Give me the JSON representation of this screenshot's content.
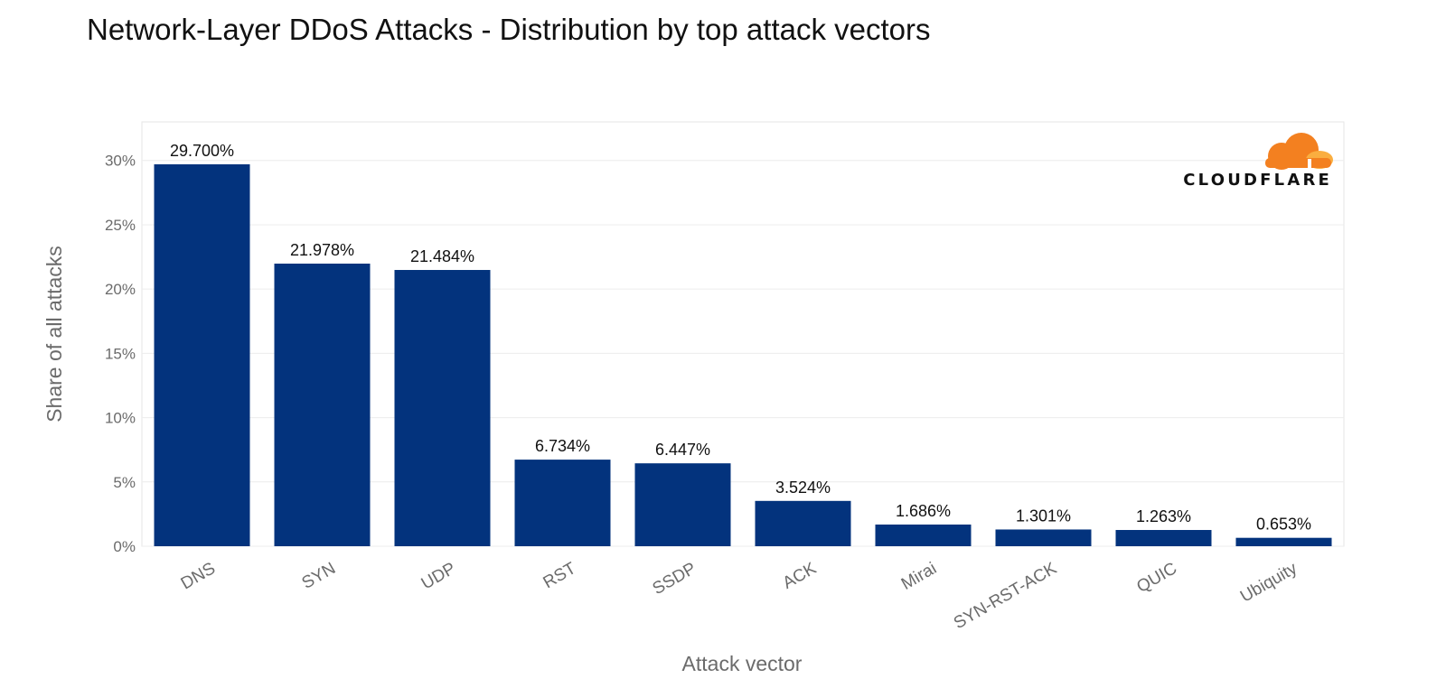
{
  "title": "Network-Layer DDoS Attacks - Distribution by top attack vectors",
  "logo": {
    "text": "CLOUDFLARE",
    "cloud_color": "#F38020",
    "cloud_highlight": "#FAAE40"
  },
  "colors": {
    "bar": "#03337D",
    "grid": "#ececec",
    "plot_border": "#e6e6e6"
  },
  "chart_data": {
    "type": "bar",
    "title": "Network-Layer DDoS Attacks - Distribution by top attack vectors",
    "xlabel": "Attack vector",
    "ylabel": "Share of all attacks",
    "categories": [
      "DNS",
      "SYN",
      "UDP",
      "RST",
      "SSDP",
      "ACK",
      "Mirai",
      "SYN-RST-ACK",
      "QUIC",
      "Ubiquity"
    ],
    "values": [
      29.7,
      21.978,
      21.484,
      6.734,
      6.447,
      3.524,
      1.686,
      1.301,
      1.263,
      0.653
    ],
    "value_labels": [
      "29.700%",
      "21.978%",
      "21.484%",
      "6.734%",
      "6.447%",
      "3.524%",
      "1.686%",
      "1.301%",
      "1.263%",
      "0.653%"
    ],
    "ylim": [
      0,
      33
    ],
    "yticks": [
      0,
      5,
      10,
      15,
      20,
      25,
      30
    ],
    "ytick_labels": [
      "0%",
      "5%",
      "10%",
      "15%",
      "20%",
      "25%",
      "30%"
    ],
    "grid": true,
    "legend": "none"
  }
}
